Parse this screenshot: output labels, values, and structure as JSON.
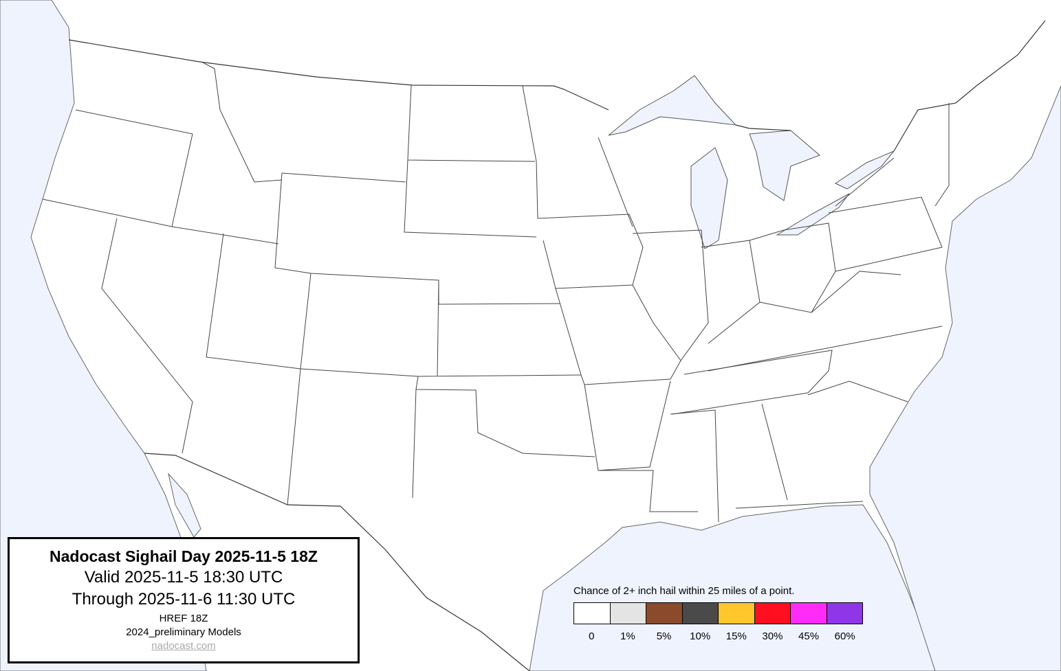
{
  "info_box": {
    "title": "Nadocast Sighail Day 2025-11-5 18Z",
    "valid": "Valid 2025-11-5 18:30 UTC",
    "through": "Through 2025-11-6 11:30 UTC",
    "model": "HREF 18Z",
    "models_version": "2024_preliminary Models",
    "site": "nadocast.com"
  },
  "legend": {
    "title": "Chance of 2+ inch hail within 25 miles of a point.",
    "items": [
      {
        "label": "0",
        "color": "#ffffff"
      },
      {
        "label": "1%",
        "color": "#e4e4e4"
      },
      {
        "label": "5%",
        "color": "#8b4a2b"
      },
      {
        "label": "10%",
        "color": "#4a4a4a"
      },
      {
        "label": "15%",
        "color": "#ffc62e"
      },
      {
        "label": "30%",
        "color": "#ff0f1f"
      },
      {
        "label": "45%",
        "color": "#ff2cf7"
      },
      {
        "label": "60%",
        "color": "#8f37e8"
      }
    ]
  },
  "colors": {
    "water": "#eef3fe",
    "land": "#ffffff"
  }
}
